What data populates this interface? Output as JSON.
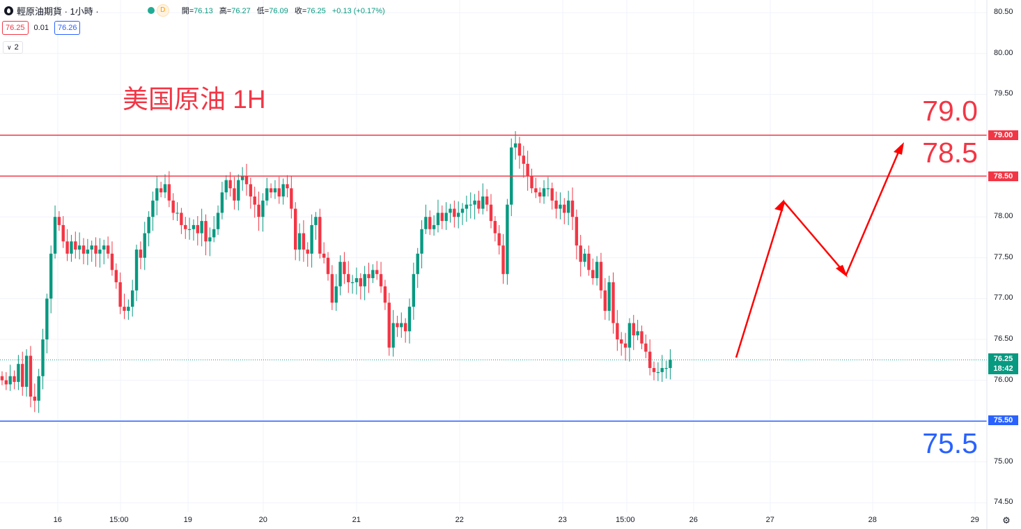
{
  "header": {
    "symbol_title": "輕原油期貨 · 1小時 · ",
    "badge": "D",
    "ohlc": [
      {
        "label": "開=",
        "value": "76.13"
      },
      {
        "label": "高=",
        "value": "76.27"
      },
      {
        "label": "低=",
        "value": "76.09"
      },
      {
        "label": "收=",
        "value": "76.25"
      },
      {
        "label": "",
        "value": "+0.13 (+0.17%)"
      }
    ],
    "sell_price": "76.25",
    "spread": "0.01",
    "buy_price": "76.26",
    "layers_count": "2"
  },
  "annotations": {
    "title": "美国原油 1H",
    "label_790": "79.0",
    "label_785": "78.5",
    "label_755": "75.5"
  },
  "price_tags": {
    "tag_7900": "79.00",
    "tag_7850": "78.50",
    "tag_7550": "75.50",
    "last_price": "76.25",
    "countdown": "18:42"
  },
  "y_axis_labels": [
    "80.50",
    "80.00",
    "79.50",
    "79.00",
    "78.50",
    "78.00",
    "77.50",
    "77.00",
    "76.50",
    "76.00",
    "75.50",
    "75.00",
    "74.50"
  ],
  "x_axis_labels": [
    "16",
    "15:00",
    "19",
    "20",
    "21",
    "22",
    "23",
    "15:00",
    "26",
    "27",
    "28",
    "29"
  ],
  "colors": {
    "up": "#089981",
    "down": "#f23645",
    "resistance": "#f23645",
    "support": "#2962ff",
    "arrow": "#ff0000"
  },
  "chart_data": {
    "type": "candlestick",
    "title": "美国原油 1H",
    "ylim": [
      74.4,
      80.6
    ],
    "y_ticks": [
      74.5,
      75.0,
      75.5,
      76.0,
      76.5,
      77.0,
      77.5,
      78.0,
      78.5,
      79.0,
      79.5,
      80.0,
      80.5
    ],
    "x_tick_labels": [
      "16",
      "15:00",
      "19",
      "20",
      "21",
      "22",
      "23",
      "15:00",
      "26",
      "27",
      "28",
      "29"
    ],
    "horizontal_lines": [
      {
        "price": 79.0,
        "color": "#f23645"
      },
      {
        "price": 78.5,
        "color": "#f23645"
      },
      {
        "price": 75.5,
        "color": "#2962ff"
      }
    ],
    "last_price": 76.25,
    "candles_close": [
      76.0,
      75.95,
      76.05,
      75.98,
      76.2,
      75.92,
      76.3,
      75.8,
      75.75,
      76.05,
      76.5,
      77.0,
      77.55,
      78.0,
      77.9,
      77.7,
      77.55,
      77.7,
      77.6,
      77.65,
      77.55,
      77.6,
      77.65,
      77.55,
      77.6,
      77.65,
      77.55,
      77.35,
      77.2,
      76.9,
      76.85,
      76.9,
      77.1,
      77.6,
      77.5,
      77.8,
      78.0,
      78.2,
      78.35,
      78.3,
      78.4,
      78.2,
      78.05,
      78.05,
      77.9,
      77.85,
      77.85,
      77.9,
      77.8,
      77.95,
      77.7,
      77.75,
      77.85,
      78.05,
      78.3,
      78.45,
      78.35,
      78.2,
      78.45,
      78.5,
      78.4,
      78.25,
      78.15,
      78.0,
      78.2,
      78.35,
      78.3,
      78.35,
      78.25,
      78.4,
      78.35,
      78.1,
      77.6,
      77.8,
      77.6,
      77.55,
      77.9,
      78.0,
      77.55,
      77.5,
      77.3,
      76.95,
      77.15,
      77.45,
      77.3,
      77.2,
      77.2,
      77.25,
      77.15,
      77.3,
      77.25,
      77.35,
      77.3,
      77.15,
      76.95,
      76.4,
      76.7,
      76.65,
      76.7,
      76.6,
      76.9,
      77.3,
      77.55,
      77.85,
      78.0,
      77.85,
      77.9,
      78.05,
      77.95,
      78.05,
      78.1,
      78.0,
      78.05,
      78.1,
      78.15,
      78.15,
      78.2,
      78.1,
      78.25,
      78.15,
      77.95,
      77.8,
      77.65,
      77.3,
      78.15,
      78.85,
      78.9,
      78.75,
      78.65,
      78.5,
      78.35,
      78.3,
      78.25,
      78.35,
      78.35,
      78.2,
      78.1,
      78.15,
      78.05,
      78.2,
      78.0,
      77.65,
      77.45,
      77.55,
      77.35,
      77.25,
      77.45,
      77.1,
      76.85,
      77.2,
      76.7,
      76.5,
      76.45,
      76.4,
      76.7,
      76.55,
      76.6,
      76.45,
      76.35,
      76.15,
      76.1,
      76.1,
      76.15,
      76.15,
      76.25
    ]
  }
}
